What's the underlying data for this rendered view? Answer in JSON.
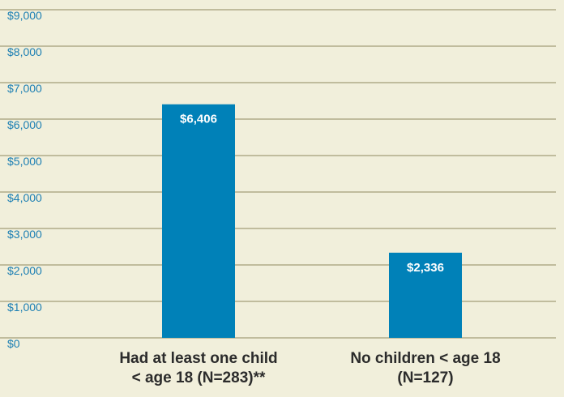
{
  "chart_data": {
    "type": "bar",
    "categories": [
      [
        "Had at least one child",
        "< age 18 (N=283)**"
      ],
      [
        "No children < age 18",
        "(N=127)"
      ]
    ],
    "values": [
      6406,
      2336
    ],
    "data_labels": [
      "$6,406",
      "$2,336"
    ],
    "ylim": [
      0,
      9000
    ],
    "yticks": [
      0,
      1000,
      2000,
      3000,
      4000,
      5000,
      6000,
      7000,
      8000,
      9000
    ],
    "ytick_labels": [
      "$0",
      "$1,000",
      "$2,000",
      "$3,000",
      "$4,000",
      "$5,000",
      "$6,000",
      "$7,000",
      "$8,000",
      "$9,000"
    ],
    "grid": true,
    "colors": {
      "bar": "#0081b8",
      "grid": "#8f8a5f",
      "background": "#f1efdb",
      "tick_text": "#1c7fb3",
      "category_text": "#2b2b2b",
      "data_label_text": "#ffffff"
    }
  }
}
